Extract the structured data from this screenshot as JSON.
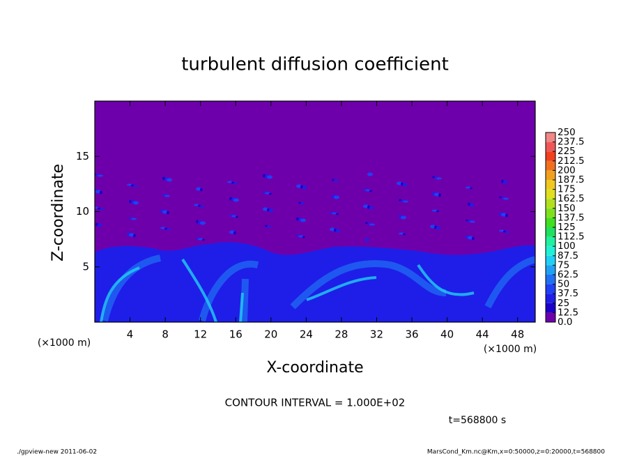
{
  "chart_data": {
    "type": "contour",
    "title": "turbulent diffusion coefficient",
    "xlabel": "X-coordinate",
    "ylabel": "Z-coordinate",
    "x_unit": "(×1000 m)",
    "y_unit": "(×1000 m)",
    "xlim": [
      0,
      50
    ],
    "xticks": [
      4,
      8,
      12,
      16,
      20,
      24,
      28,
      32,
      36,
      40,
      44,
      48
    ],
    "ylim": [
      0,
      20
    ],
    "yticks": [
      5,
      10,
      15
    ],
    "colorbar": {
      "lim": [
        0,
        250
      ],
      "ticks": [
        {
          "value": 0,
          "label": "0.0"
        },
        12.5,
        25,
        37.5,
        50,
        62.5,
        75,
        87.5,
        100,
        112.5,
        125,
        137.5,
        150,
        162.5,
        175,
        187.5,
        200,
        212.5,
        225,
        237.5,
        250
      ],
      "colors": [
        "#6e00ac",
        "#1a00c8",
        "#1e1ee8",
        "#2040f4",
        "#2070f4",
        "#20a0f4",
        "#20d0f4",
        "#20f0d8",
        "#20f0a0",
        "#20e060",
        "#40e020",
        "#80e020",
        "#b0e020",
        "#e0e020",
        "#f0c820",
        "#f0a020",
        "#f07020",
        "#f04020",
        "#f05858",
        "#f08888"
      ]
    },
    "contour_interval": "CONTOUR INTERVAL = 1.000E+02",
    "time": "t=568800 s",
    "footer_left": "./gpview-new  2011-06-02",
    "footer_right": "MarsCond_Km.nc@Km,x=0:50000,z=0:20000,t=568800"
  }
}
